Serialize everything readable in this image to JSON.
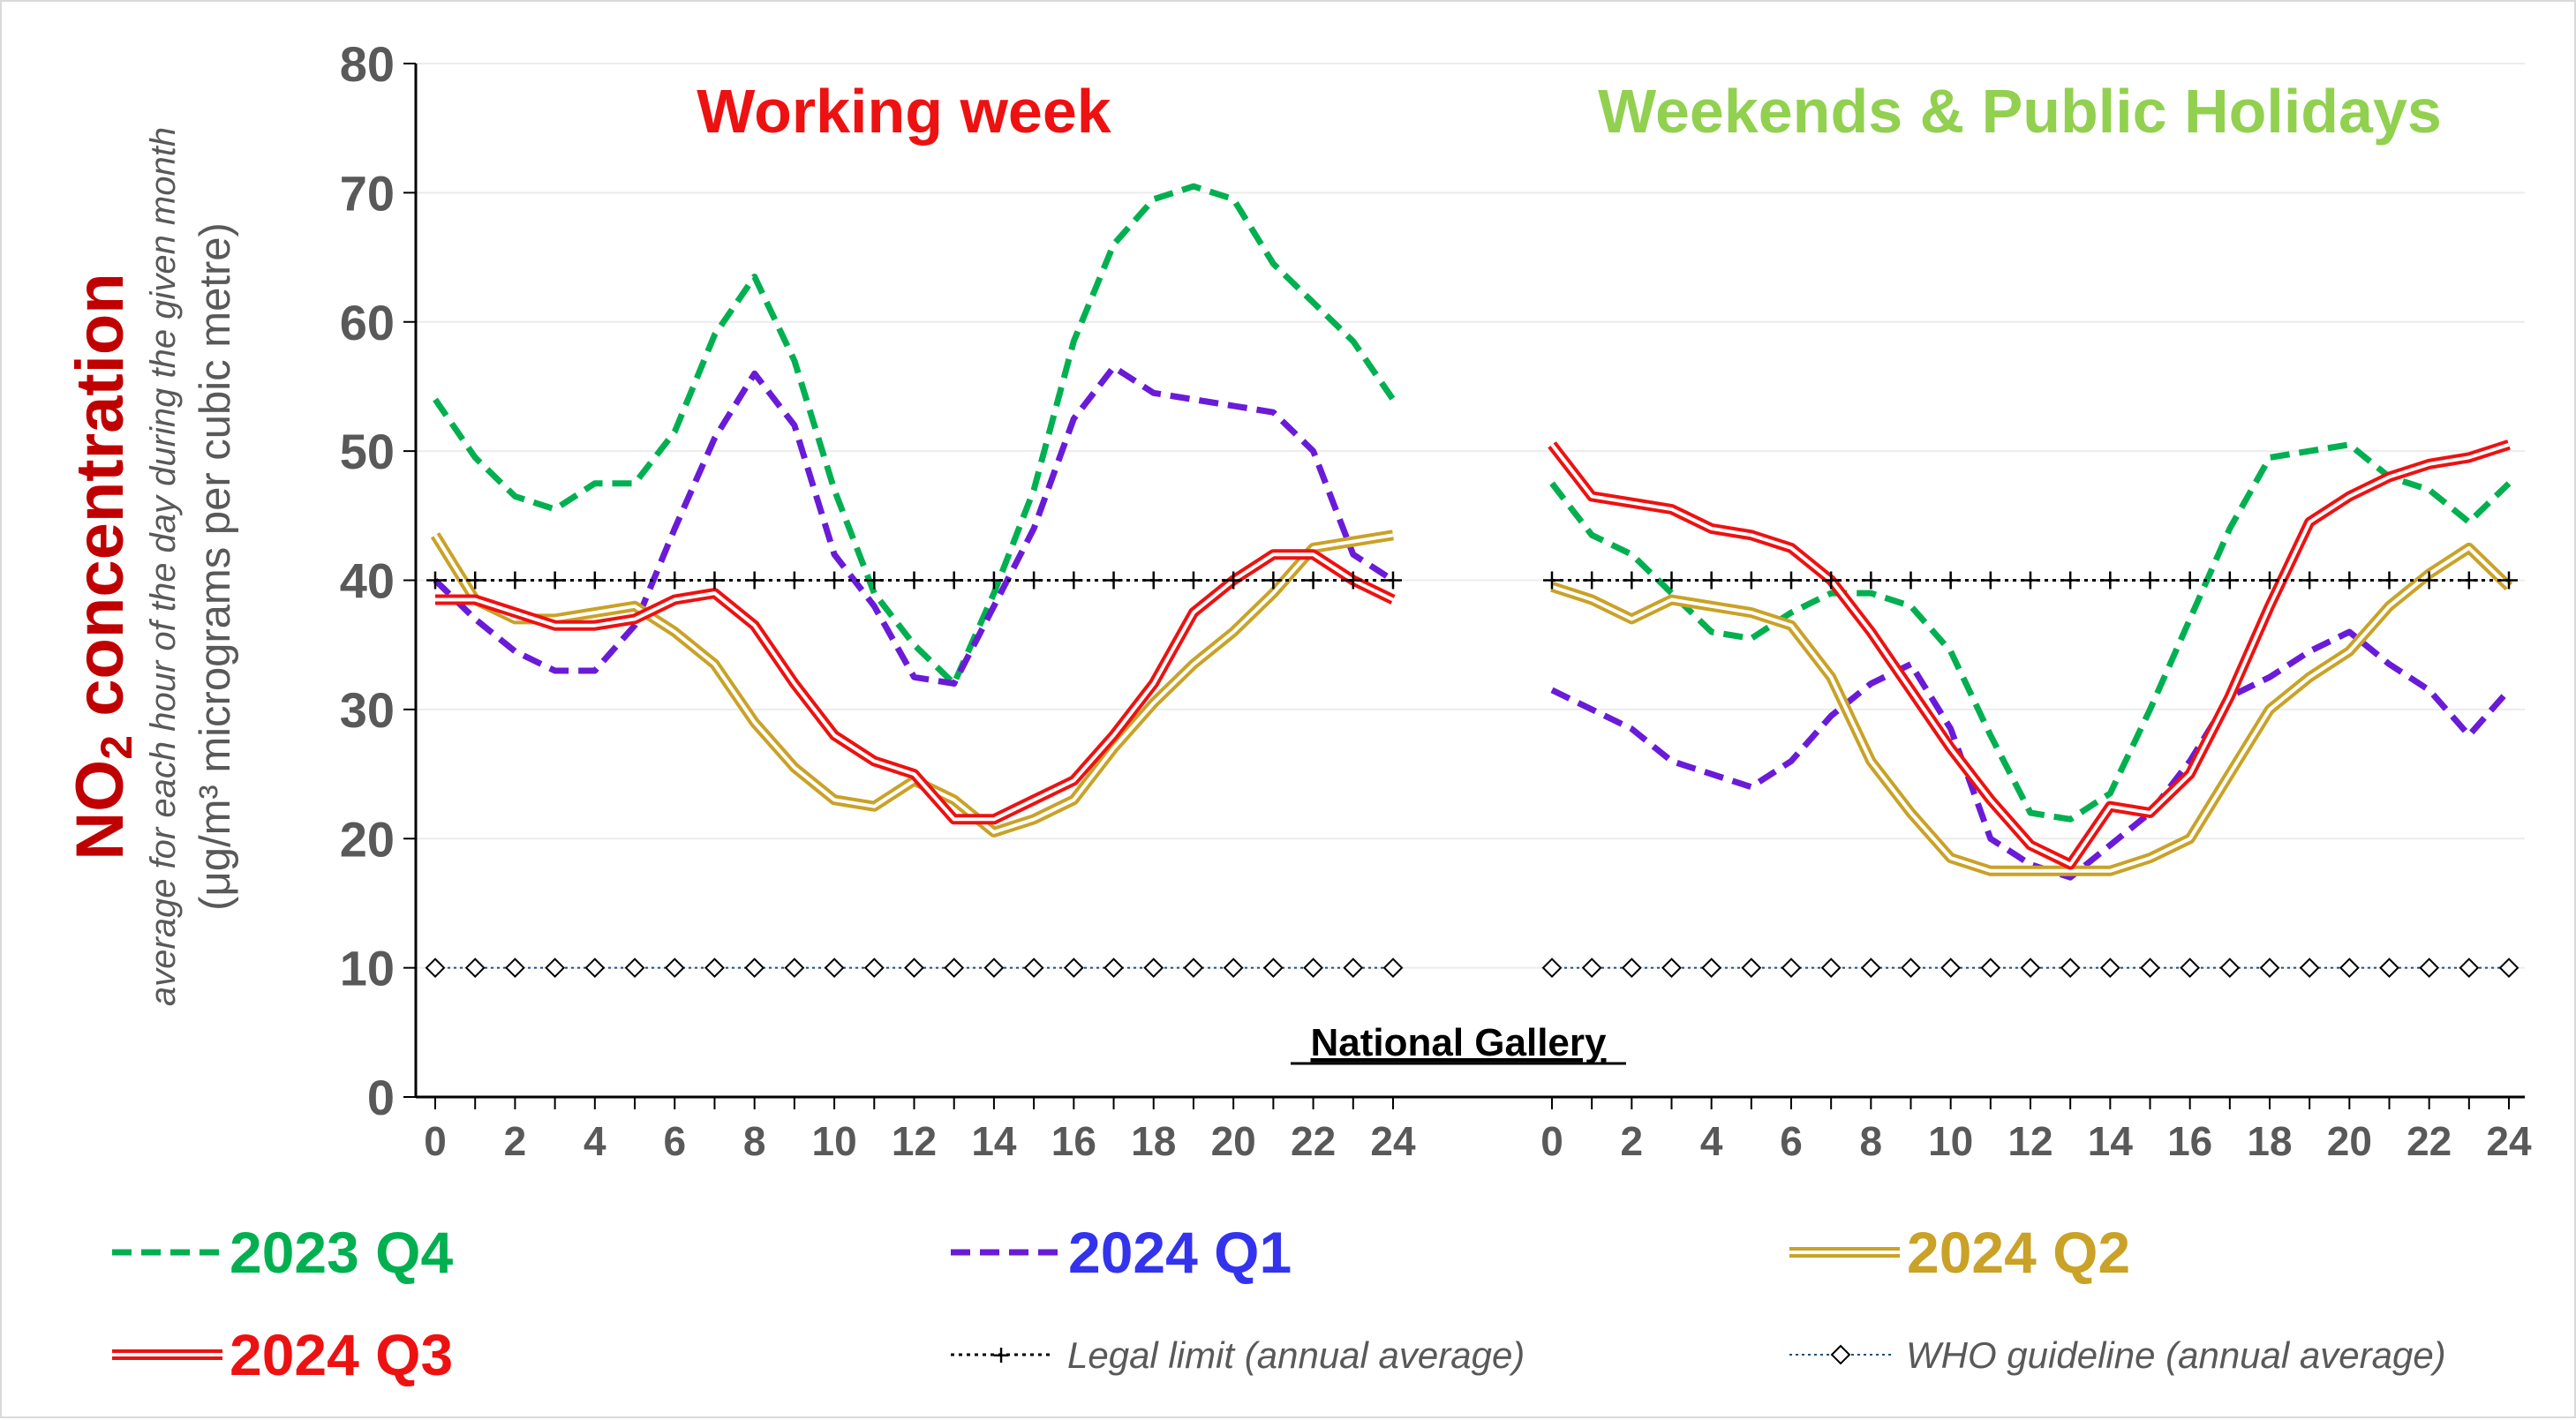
{
  "y_axis": {
    "title_main": "NO",
    "title_sub": "2",
    "title_rest": " concentration",
    "subtitle": "average for each hour of the day during the given month",
    "unit": "(μg/m³ micrograms per cubic metre)"
  },
  "site_label": "National Gallery",
  "colors": {
    "q4_2023": "#00b050",
    "q1_2024": "#6a1bd8",
    "q2_2024": "#c9a227",
    "q3_2024": "#ee1111",
    "legal": "#000000",
    "who": "#1f4e79",
    "title_working": "#ee1111",
    "title_weekend": "#92d050",
    "axis_text": "#595959"
  },
  "legend": {
    "q4_2023": "2023 Q4",
    "q1_2024": "2024 Q1",
    "q2_2024": "2024 Q2",
    "q3_2024": "2024 Q3",
    "legal": "Legal limit (annual average)",
    "who": "WHO guideline (annual average)"
  },
  "chart_data": {
    "type": "line",
    "ylim": [
      0,
      80
    ],
    "y_ticks": [
      0,
      10,
      20,
      30,
      40,
      50,
      60,
      70,
      80
    ],
    "x_ticks": [
      0,
      2,
      4,
      6,
      8,
      10,
      12,
      14,
      16,
      18,
      20,
      22,
      24
    ],
    "xlim": [
      0,
      24
    ],
    "gridlines": "horizontal",
    "panels": [
      {
        "title": "Working week",
        "series": [
          {
            "key": "q4_2023",
            "name": "2023 Q4",
            "style": "dashed",
            "values": [
              54,
              49.5,
              46.5,
              45.5,
              47.5,
              47.5,
              51.5,
              59,
              63.5,
              57,
              47,
              39,
              35,
              32,
              39,
              47,
              58.5,
              66,
              69.5,
              70.5,
              69.5,
              64.5,
              61.5,
              58.5,
              54
            ]
          },
          {
            "key": "q1_2024",
            "name": "2024 Q1",
            "style": "dashed",
            "values": [
              40,
              37,
              34.5,
              33,
              33,
              36.5,
              44,
              51,
              56,
              52,
              42,
              38,
              32.5,
              32,
              38,
              44,
              52.5,
              56.5,
              54.5,
              54,
              53.5,
              53,
              50,
              42,
              40
            ]
          },
          {
            "key": "q2_2024",
            "name": "2024 Q2",
            "style": "double",
            "values": [
              43.5,
              38.5,
              37,
              37,
              37.5,
              38,
              36,
              33.5,
              29,
              25.5,
              23,
              22.5,
              24.5,
              23,
              20.5,
              21.5,
              23,
              27,
              30.5,
              33.5,
              36,
              39,
              42.5,
              43,
              43.5
            ]
          },
          {
            "key": "q3_2024",
            "name": "2024 Q3",
            "style": "double",
            "values": [
              38.5,
              38.5,
              37.5,
              36.5,
              36.5,
              37,
              38.5,
              39,
              36.5,
              32,
              28,
              26,
              25,
              21.5,
              21.5,
              23,
              24.5,
              28,
              32,
              37.5,
              40,
              42,
              42,
              40,
              38.5
            ]
          },
          {
            "key": "legal",
            "name": "Legal limit (annual average)",
            "style": "dotted-plus",
            "values": [
              40,
              40,
              40,
              40,
              40,
              40,
              40,
              40,
              40,
              40,
              40,
              40,
              40,
              40,
              40,
              40,
              40,
              40,
              40,
              40,
              40,
              40,
              40,
              40,
              40
            ]
          },
          {
            "key": "who",
            "name": "WHO guideline (annual average)",
            "style": "dotted-diamond",
            "values": [
              10,
              10,
              10,
              10,
              10,
              10,
              10,
              10,
              10,
              10,
              10,
              10,
              10,
              10,
              10,
              10,
              10,
              10,
              10,
              10,
              10,
              10,
              10,
              10,
              10
            ]
          }
        ]
      },
      {
        "title": "Weekends & Public Holidays",
        "series": [
          {
            "key": "q4_2023",
            "name": "2023 Q4",
            "style": "dashed",
            "values": [
              47.5,
              43.5,
              42,
              39,
              36,
              35.5,
              37.5,
              39,
              39,
              38,
              34.5,
              28,
              22,
              21.5,
              23.5,
              30,
              37,
              44,
              49.5,
              50,
              50.5,
              48,
              47,
              44.5,
              47.5
            ]
          },
          {
            "key": "q1_2024",
            "name": "2024 Q1",
            "style": "dashed",
            "values": [
              31.5,
              30,
              28.5,
              26,
              25,
              24,
              26,
              29.5,
              32,
              33.5,
              28.5,
              20,
              18,
              17,
              19.5,
              22,
              26,
              31,
              32.5,
              34.5,
              36,
              33.5,
              31.5,
              28,
              31.5
            ]
          },
          {
            "key": "q2_2024",
            "name": "2024 Q2",
            "style": "double",
            "values": [
              39.5,
              38.5,
              37,
              38.5,
              38,
              37.5,
              36.5,
              32.5,
              26,
              22,
              18.5,
              17.5,
              17.5,
              17.5,
              17.5,
              18.5,
              20,
              25,
              30,
              32.5,
              34.5,
              38,
              40.5,
              42.5,
              39.5
            ]
          },
          {
            "key": "q3_2024",
            "name": "2024 Q3",
            "style": "double",
            "values": [
              50.5,
              46.5,
              46,
              45.5,
              44,
              43.5,
              42.5,
              40,
              36,
              31.5,
              27,
              23,
              19.5,
              18,
              22.5,
              22,
              25,
              31,
              38,
              44.5,
              46.5,
              48,
              49,
              49.5,
              50.5
            ]
          },
          {
            "key": "legal",
            "name": "Legal limit (annual average)",
            "style": "dotted-plus",
            "values": [
              40,
              40,
              40,
              40,
              40,
              40,
              40,
              40,
              40,
              40,
              40,
              40,
              40,
              40,
              40,
              40,
              40,
              40,
              40,
              40,
              40,
              40,
              40,
              40,
              40
            ]
          },
          {
            "key": "who",
            "name": "WHO guideline (annual average)",
            "style": "dotted-diamond",
            "values": [
              10,
              10,
              10,
              10,
              10,
              10,
              10,
              10,
              10,
              10,
              10,
              10,
              10,
              10,
              10,
              10,
              10,
              10,
              10,
              10,
              10,
              10,
              10,
              10,
              10
            ]
          }
        ]
      }
    ]
  }
}
